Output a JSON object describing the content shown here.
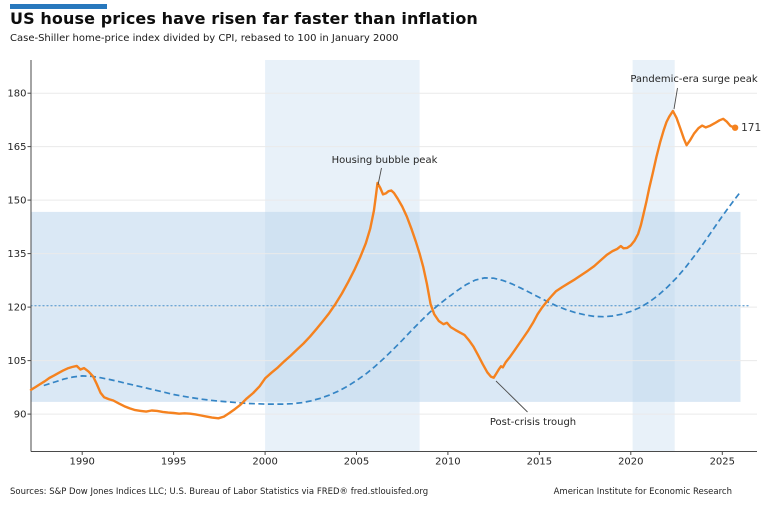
{
  "header": {
    "title": "US house prices have risen far faster than inflation",
    "subtitle": "Case-Shiller home-price index divided by CPI, rebased to 100 in January 2000",
    "accent_color": "#2878BD"
  },
  "footer": {
    "sources": "Sources: S&P Dow Jones Indices LLC; U.S. Bureau of Labor Statistics via FRED® fred.stlouisfed.org",
    "credit": "American Institute for Economic Research"
  },
  "chart_data": {
    "type": "line",
    "title": "US house prices have risen far faster than inflation",
    "xlabel": "",
    "ylabel": "",
    "x_ticks": [
      1990,
      1995,
      2000,
      2005,
      2010,
      2015,
      2020,
      2025
    ],
    "y_ticks": [
      90,
      105,
      120,
      135,
      150,
      165,
      180
    ],
    "xlim": [
      1987.2,
      2026.9
    ],
    "ylim": [
      79.5,
      189.3
    ],
    "grid": "horizontal",
    "legend": "none",
    "colors": {
      "main": "#F5821F",
      "trend": "#3585C5",
      "dotted": "#6FA8D6",
      "grid": "#eaeaea",
      "h_band": "rgba(188,214,236,0.55)",
      "v_band": "rgba(203,223,241,0.45)"
    },
    "reference_line": {
      "value": 120.4,
      "style": "dotted"
    },
    "h_band": {
      "from": 93.4,
      "to": 146.7,
      "x_to_year": 2026.0
    },
    "v_bands": [
      {
        "from": 2000.0,
        "to": 2008.45
      },
      {
        "from": 2020.1,
        "to": 2022.4
      }
    ],
    "series": [
      {
        "name": "Case-Shiller home-price index divided by CPI (Jan 2000 = 100)",
        "style": "solid",
        "points": [
          [
            1987.2,
            96.8
          ],
          [
            1987.45,
            97.6
          ],
          [
            1987.7,
            98.4
          ],
          [
            1987.95,
            99.2
          ],
          [
            1988.2,
            100.1
          ],
          [
            1988.45,
            100.8
          ],
          [
            1988.7,
            101.5
          ],
          [
            1988.95,
            102.2
          ],
          [
            1989.2,
            102.8
          ],
          [
            1989.45,
            103.2
          ],
          [
            1989.7,
            103.5
          ],
          [
            1989.9,
            102.5
          ],
          [
            1990.1,
            102.9
          ],
          [
            1990.35,
            101.9
          ],
          [
            1990.6,
            100.5
          ],
          [
            1990.8,
            98.4
          ],
          [
            1991.0,
            96.0
          ],
          [
            1991.2,
            94.7
          ],
          [
            1991.45,
            94.2
          ],
          [
            1991.7,
            93.8
          ],
          [
            1992.0,
            93.0
          ],
          [
            1992.3,
            92.2
          ],
          [
            1992.6,
            91.6
          ],
          [
            1992.9,
            91.1
          ],
          [
            1993.2,
            90.9
          ],
          [
            1993.5,
            90.7
          ],
          [
            1993.8,
            91.0
          ],
          [
            1994.1,
            90.9
          ],
          [
            1994.4,
            90.6
          ],
          [
            1994.7,
            90.4
          ],
          [
            1995.0,
            90.3
          ],
          [
            1995.3,
            90.1
          ],
          [
            1995.6,
            90.2
          ],
          [
            1995.9,
            90.1
          ],
          [
            1996.2,
            89.9
          ],
          [
            1996.5,
            89.6
          ],
          [
            1996.8,
            89.3
          ],
          [
            1997.1,
            89.0
          ],
          [
            1997.45,
            88.8
          ],
          [
            1997.75,
            89.3
          ],
          [
            1998.05,
            90.3
          ],
          [
            1998.35,
            91.4
          ],
          [
            1998.65,
            92.6
          ],
          [
            1999.0,
            94.4
          ],
          [
            1999.35,
            95.9
          ],
          [
            1999.7,
            97.8
          ],
          [
            2000.0,
            100.0
          ],
          [
            2000.35,
            101.6
          ],
          [
            2000.7,
            103.1
          ],
          [
            2001.05,
            104.8
          ],
          [
            2001.4,
            106.4
          ],
          [
            2001.75,
            108.1
          ],
          [
            2002.1,
            109.8
          ],
          [
            2002.45,
            111.7
          ],
          [
            2002.8,
            113.8
          ],
          [
            2003.15,
            116.0
          ],
          [
            2003.5,
            118.3
          ],
          [
            2003.85,
            120.9
          ],
          [
            2004.2,
            123.8
          ],
          [
            2004.55,
            127.1
          ],
          [
            2004.9,
            130.6
          ],
          [
            2005.2,
            134.0
          ],
          [
            2005.5,
            137.8
          ],
          [
            2005.75,
            142.0
          ],
          [
            2005.95,
            147.0
          ],
          [
            2006.05,
            150.8
          ],
          [
            2006.15,
            154.8
          ],
          [
            2006.3,
            153.4
          ],
          [
            2006.45,
            151.6
          ],
          [
            2006.6,
            151.9
          ],
          [
            2006.75,
            152.5
          ],
          [
            2006.9,
            152.7
          ],
          [
            2007.05,
            152.0
          ],
          [
            2007.25,
            150.4
          ],
          [
            2007.5,
            148.2
          ],
          [
            2007.75,
            145.4
          ],
          [
            2008.0,
            142.0
          ],
          [
            2008.25,
            138.3
          ],
          [
            2008.45,
            135.0
          ],
          [
            2008.65,
            131.2
          ],
          [
            2008.85,
            126.5
          ],
          [
            2009.05,
            120.8
          ],
          [
            2009.25,
            118.0
          ],
          [
            2009.5,
            116.1
          ],
          [
            2009.75,
            115.2
          ],
          [
            2009.95,
            115.6
          ],
          [
            2010.15,
            114.4
          ],
          [
            2010.4,
            113.6
          ],
          [
            2010.65,
            112.9
          ],
          [
            2010.9,
            112.2
          ],
          [
            2011.15,
            110.7
          ],
          [
            2011.4,
            108.9
          ],
          [
            2011.65,
            106.5
          ],
          [
            2011.9,
            104.0
          ],
          [
            2012.15,
            101.7
          ],
          [
            2012.35,
            100.5
          ],
          [
            2012.5,
            100.2
          ],
          [
            2012.65,
            101.4
          ],
          [
            2012.8,
            102.7
          ],
          [
            2012.9,
            103.4
          ],
          [
            2013.0,
            103.1
          ],
          [
            2013.15,
            104.5
          ],
          [
            2013.4,
            106.1
          ],
          [
            2013.65,
            107.9
          ],
          [
            2013.9,
            109.8
          ],
          [
            2014.15,
            111.6
          ],
          [
            2014.4,
            113.5
          ],
          [
            2014.65,
            115.6
          ],
          [
            2014.9,
            118.0
          ],
          [
            2015.15,
            119.9
          ],
          [
            2015.4,
            121.5
          ],
          [
            2015.65,
            123.0
          ],
          [
            2015.9,
            124.4
          ],
          [
            2016.25,
            125.6
          ],
          [
            2016.6,
            126.7
          ],
          [
            2016.95,
            127.8
          ],
          [
            2017.3,
            129.0
          ],
          [
            2017.65,
            130.2
          ],
          [
            2018.0,
            131.5
          ],
          [
            2018.35,
            133.1
          ],
          [
            2018.7,
            134.7
          ],
          [
            2019.0,
            135.7
          ],
          [
            2019.25,
            136.3
          ],
          [
            2019.45,
            137.1
          ],
          [
            2019.6,
            136.5
          ],
          [
            2019.8,
            136.6
          ],
          [
            2020.0,
            137.3
          ],
          [
            2020.2,
            138.6
          ],
          [
            2020.4,
            140.5
          ],
          [
            2020.55,
            143.0
          ],
          [
            2020.7,
            146.2
          ],
          [
            2020.85,
            149.6
          ],
          [
            2021.0,
            153.2
          ],
          [
            2021.2,
            157.6
          ],
          [
            2021.4,
            162.1
          ],
          [
            2021.6,
            166.2
          ],
          [
            2021.8,
            169.6
          ],
          [
            2021.95,
            171.9
          ],
          [
            2022.1,
            173.4
          ],
          [
            2022.3,
            175.0
          ],
          [
            2022.5,
            173.1
          ],
          [
            2022.7,
            170.2
          ],
          [
            2022.9,
            167.2
          ],
          [
            2023.05,
            165.4
          ],
          [
            2023.25,
            166.9
          ],
          [
            2023.45,
            168.6
          ],
          [
            2023.7,
            170.2
          ],
          [
            2023.9,
            170.9
          ],
          [
            2024.1,
            170.4
          ],
          [
            2024.35,
            170.9
          ],
          [
            2024.6,
            171.6
          ],
          [
            2024.85,
            172.4
          ],
          [
            2025.05,
            172.8
          ],
          [
            2025.25,
            172.0
          ],
          [
            2025.45,
            170.8
          ],
          [
            2025.7,
            170.3
          ]
        ]
      },
      {
        "name": "Long-run trend (dashed)",
        "style": "dashed",
        "points": [
          [
            1987.9,
            98.0
          ],
          [
            1988.5,
            99.0
          ],
          [
            1989.0,
            99.8
          ],
          [
            1989.5,
            100.4
          ],
          [
            1990.0,
            100.7
          ],
          [
            1990.5,
            100.6
          ],
          [
            1991.0,
            100.2
          ],
          [
            1991.5,
            99.7
          ],
          [
            1992.0,
            99.1
          ],
          [
            1992.5,
            98.5
          ],
          [
            1993.0,
            97.9
          ],
          [
            1993.5,
            97.3
          ],
          [
            1994.0,
            96.7
          ],
          [
            1994.5,
            96.1
          ],
          [
            1995.0,
            95.5
          ],
          [
            1995.5,
            95.0
          ],
          [
            1996.0,
            94.6
          ],
          [
            1996.5,
            94.2
          ],
          [
            1997.0,
            93.9
          ],
          [
            1997.5,
            93.6
          ],
          [
            1998.0,
            93.4
          ],
          [
            1998.5,
            93.2
          ],
          [
            1999.0,
            93.0
          ],
          [
            1999.5,
            92.9
          ],
          [
            2000.0,
            92.8
          ],
          [
            2000.5,
            92.8
          ],
          [
            2001.0,
            92.8
          ],
          [
            2001.5,
            92.9
          ],
          [
            2002.0,
            93.2
          ],
          [
            2002.5,
            93.7
          ],
          [
            2003.0,
            94.4
          ],
          [
            2003.5,
            95.3
          ],
          [
            2004.0,
            96.4
          ],
          [
            2004.5,
            97.8
          ],
          [
            2005.0,
            99.4
          ],
          [
            2005.5,
            101.2
          ],
          [
            2006.0,
            103.3
          ],
          [
            2006.5,
            105.6
          ],
          [
            2007.0,
            108.1
          ],
          [
            2007.5,
            110.7
          ],
          [
            2008.0,
            113.4
          ],
          [
            2008.5,
            116.0
          ],
          [
            2009.0,
            118.5
          ],
          [
            2009.5,
            120.7
          ],
          [
            2010.0,
            122.7
          ],
          [
            2010.5,
            124.6
          ],
          [
            2011.0,
            126.3
          ],
          [
            2011.5,
            127.6
          ],
          [
            2012.0,
            128.2
          ],
          [
            2012.5,
            128.1
          ],
          [
            2013.0,
            127.5
          ],
          [
            2013.5,
            126.5
          ],
          [
            2014.0,
            125.3
          ],
          [
            2014.5,
            124.0
          ],
          [
            2015.0,
            122.7
          ],
          [
            2015.5,
            121.4
          ],
          [
            2016.0,
            120.2
          ],
          [
            2016.5,
            119.2
          ],
          [
            2017.0,
            118.4
          ],
          [
            2017.5,
            117.8
          ],
          [
            2018.0,
            117.4
          ],
          [
            2018.5,
            117.3
          ],
          [
            2019.0,
            117.5
          ],
          [
            2019.5,
            118.0
          ],
          [
            2020.0,
            118.8
          ],
          [
            2020.5,
            119.9
          ],
          [
            2021.0,
            121.4
          ],
          [
            2021.5,
            123.3
          ],
          [
            2022.0,
            125.6
          ],
          [
            2022.5,
            128.2
          ],
          [
            2023.0,
            131.2
          ],
          [
            2023.5,
            134.5
          ],
          [
            2024.0,
            138.1
          ],
          [
            2024.5,
            141.8
          ],
          [
            2025.0,
            145.5
          ],
          [
            2025.5,
            149.0
          ],
          [
            2025.95,
            152.0
          ]
        ]
      }
    ],
    "end_label": {
      "text": "171"
    },
    "annotations": [
      {
        "text": "Housing bubble peak",
        "at_year": 2006.15,
        "at_value": 154.8
      },
      {
        "text": "Pandemic-era surge peak",
        "at_year": 2022.3,
        "at_value": 175.0
      },
      {
        "text": "Post-crisis trough",
        "at_year": 2012.5,
        "at_value": 100.2
      }
    ]
  }
}
